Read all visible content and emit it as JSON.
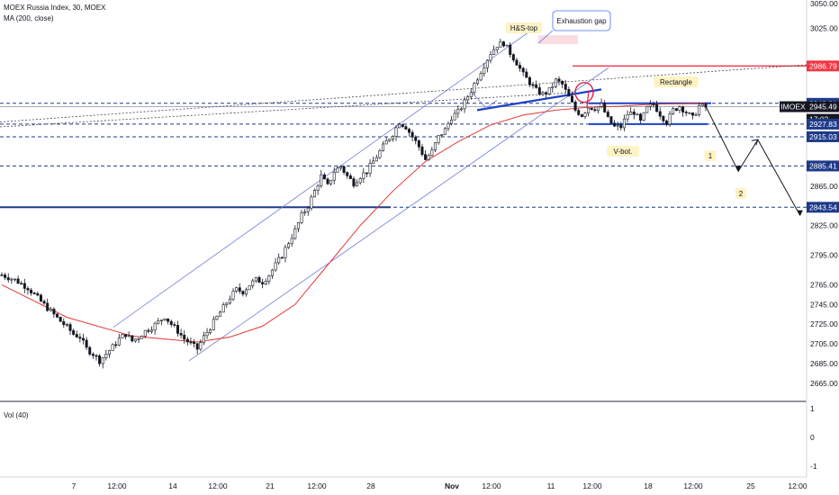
{
  "header": {
    "title": "MOEX Russia Index, 30, MOEX",
    "ma_label": "MA (200, close)",
    "vol_label": "Vol (40)"
  },
  "chart_data": {
    "type": "candlestick",
    "symbol": "IMOEX",
    "y_ticks": [
      3050.0,
      3025.0,
      2865.0,
      2825.0,
      2795.0,
      2765.0,
      2745.0,
      2725.0,
      2705.0,
      2685.0,
      2665.0
    ],
    "y_tick_labels": [
      "3050.00",
      "3025.00",
      "2865.00",
      "2825.00",
      "2795.00",
      "2765.00",
      "2745.00",
      "2725.00",
      "2705.00",
      "2685.00",
      "2665.00"
    ],
    "price_tags": [
      {
        "label": "2986.79",
        "value": 2986.79,
        "color": "#f23645"
      },
      {
        "label": "2948.91",
        "value": 2948.91,
        "color": "#1e3a8a"
      },
      {
        "label": "IMOEX",
        "value": 2945.49,
        "color": "#131722"
      },
      {
        "label": "2945.49",
        "value": 2945.49,
        "color": "#131722"
      },
      {
        "label": "17:02",
        "value": 2937.5,
        "color": "#131722"
      },
      {
        "label": "2927.83",
        "value": 2927.83,
        "color": "#1e3a8a"
      },
      {
        "label": "2915.03",
        "value": 2915.03,
        "color": "#1e3a8a"
      },
      {
        "label": "2885.41",
        "value": 2885.41,
        "color": "#1e3a8a"
      },
      {
        "label": "2843.54",
        "value": 2843.54,
        "color": "#1e3a8a"
      }
    ],
    "x_ticks": [
      "7",
      "12:00",
      "14",
      "12:00",
      "21",
      "12:00",
      "28",
      "Nov",
      "12:00",
      "11",
      "12:00",
      "18",
      "12:00",
      "25",
      "12:00"
    ],
    "vol_ticks": [
      "1",
      "0",
      "-1"
    ],
    "annotations": {
      "hs_top": "H&S-top",
      "exhaustion_gap": "Exhaustion gap",
      "rectangle": "Rectangle",
      "v_bot": "V-bot.",
      "target1": "1",
      "target2": "2"
    },
    "price_path": [
      [
        0,
        2775
      ],
      [
        4,
        2770
      ],
      [
        8,
        2762
      ],
      [
        12,
        2748
      ],
      [
        15,
        2738
      ],
      [
        18,
        2728
      ],
      [
        20,
        2722
      ],
      [
        22,
        2715
      ],
      [
        24,
        2712
      ],
      [
        26,
        2700
      ],
      [
        28,
        2695
      ],
      [
        30,
        2688
      ],
      [
        32,
        2695
      ],
      [
        34,
        2702
      ],
      [
        36,
        2710
      ],
      [
        38,
        2715
      ],
      [
        40,
        2708
      ],
      [
        42,
        2712
      ],
      [
        44,
        2718
      ],
      [
        46,
        2722
      ],
      [
        48,
        2727
      ],
      [
        50,
        2733
      ],
      [
        52,
        2725
      ],
      [
        54,
        2718
      ],
      [
        56,
        2710
      ],
      [
        58,
        2705
      ],
      [
        60,
        2700
      ],
      [
        62,
        2712
      ],
      [
        64,
        2722
      ],
      [
        66,
        2732
      ],
      [
        68,
        2742
      ],
      [
        70,
        2752
      ],
      [
        72,
        2760
      ],
      [
        74,
        2758
      ],
      [
        76,
        2765
      ],
      [
        78,
        2770
      ],
      [
        80,
        2768
      ],
      [
        82,
        2775
      ],
      [
        84,
        2785
      ],
      [
        86,
        2795
      ],
      [
        88,
        2808
      ],
      [
        90,
        2820
      ],
      [
        92,
        2835
      ],
      [
        94,
        2845
      ],
      [
        96,
        2860
      ],
      [
        98,
        2875
      ],
      [
        100,
        2865
      ],
      [
        102,
        2880
      ],
      [
        104,
        2885
      ],
      [
        106,
        2875
      ],
      [
        108,
        2868
      ],
      [
        110,
        2875
      ],
      [
        112,
        2880
      ],
      [
        114,
        2890
      ],
      [
        116,
        2900
      ],
      [
        118,
        2910
      ],
      [
        120,
        2918
      ],
      [
        122,
        2930
      ],
      [
        124,
        2925
      ],
      [
        126,
        2915
      ],
      [
        128,
        2905
      ],
      [
        130,
        2892
      ],
      [
        132,
        2900
      ],
      [
        134,
        2915
      ],
      [
        136,
        2922
      ],
      [
        138,
        2935
      ],
      [
        140,
        2940
      ],
      [
        142,
        2950
      ],
      [
        144,
        2962
      ],
      [
        146,
        2975
      ],
      [
        148,
        2988
      ],
      [
        150,
        3000
      ],
      [
        152,
        3008
      ],
      [
        154,
        3010
      ],
      [
        156,
        3000
      ],
      [
        158,
        2990
      ],
      [
        160,
        2978
      ],
      [
        162,
        2970
      ],
      [
        164,
        2962
      ],
      [
        166,
        2958
      ],
      [
        168,
        2962
      ],
      [
        170,
        2972
      ],
      [
        172,
        2968
      ],
      [
        174,
        2955
      ],
      [
        176,
        2942
      ],
      [
        178,
        2937
      ],
      [
        180,
        2945
      ],
      [
        182,
        2944
      ],
      [
        184,
        2947
      ],
      [
        186,
        2933
      ],
      [
        188,
        2925
      ],
      [
        190,
        2925
      ],
      [
        192,
        2938
      ],
      [
        194,
        2940
      ],
      [
        196,
        2930
      ],
      [
        198,
        2944
      ],
      [
        200,
        2948
      ],
      [
        202,
        2938
      ],
      [
        204,
        2930
      ],
      [
        206,
        2942
      ],
      [
        208,
        2946
      ],
      [
        210,
        2940
      ],
      [
        212,
        2934
      ],
      [
        214,
        2946
      ],
      [
        216,
        2945
      ]
    ],
    "ma200_path": [
      [
        0,
        2765
      ],
      [
        20,
        2732
      ],
      [
        40,
        2713
      ],
      [
        60,
        2707
      ],
      [
        70,
        2712
      ],
      [
        80,
        2723
      ],
      [
        90,
        2745
      ],
      [
        100,
        2785
      ],
      [
        110,
        2825
      ],
      [
        120,
        2860
      ],
      [
        130,
        2890
      ],
      [
        140,
        2910
      ],
      [
        150,
        2927
      ],
      [
        160,
        2937
      ],
      [
        170,
        2942
      ],
      [
        180,
        2945
      ],
      [
        190,
        2946
      ],
      [
        200,
        2948
      ],
      [
        216,
        2949
      ]
    ],
    "projection_path": [
      [
        216,
        2946
      ],
      [
        226,
        2880
      ],
      [
        232,
        2912
      ],
      [
        245,
        2835
      ]
    ]
  }
}
